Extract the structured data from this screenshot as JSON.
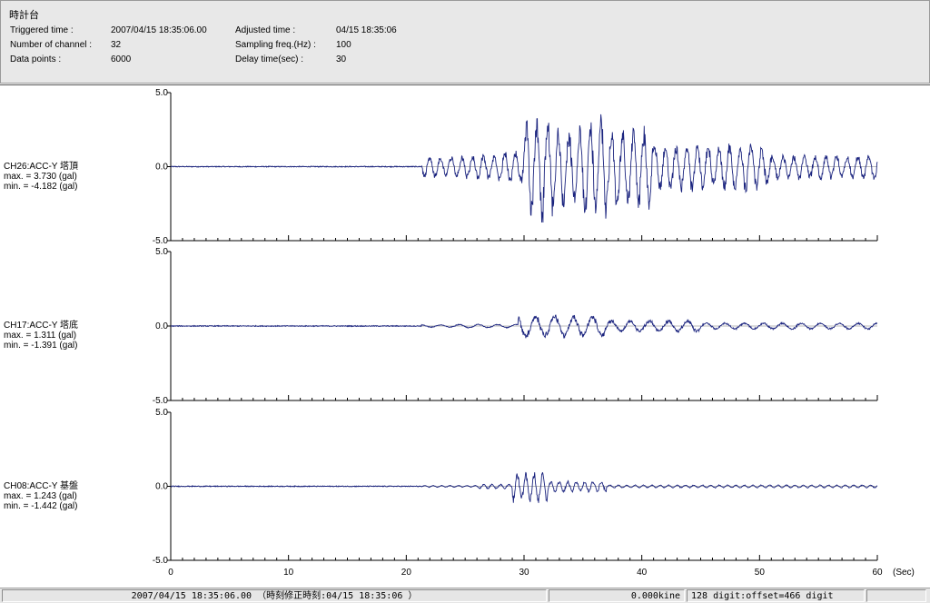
{
  "header": {
    "title": "時計台",
    "triggered_label": "Triggered time :",
    "triggered_value": "2007/04/15 18:35:06.00",
    "channels_label": "Number of channel :",
    "channels_value": "32",
    "points_label": "Data points :",
    "points_value": "6000",
    "adjusted_label": "Adjusted time :",
    "adjusted_value": "04/15 18:35:06",
    "sampling_label": "Sampling freq.(Hz) :",
    "sampling_value": "100",
    "delay_label": "Delay time(sec) :",
    "delay_value": "30"
  },
  "channels": [
    {
      "name": "CH26:ACC-Y 塔頂",
      "max": "max. = 3.730 (gal)",
      "min": "min. = -4.182 (gal)",
      "y_ticks": [
        "5.0",
        "0.0",
        "-5.0"
      ],
      "amp_max": 3.73,
      "amp_min": -4.182
    },
    {
      "name": "CH17:ACC-Y 塔底",
      "max": "max. = 1.311 (gal)",
      "min": "min. = -1.391 (gal)",
      "y_ticks": [
        "5.0",
        "0.0",
        "-5.0"
      ],
      "amp_max": 1.311,
      "amp_min": -1.391
    },
    {
      "name": "CH08:ACC-Y 基盤",
      "max": "max. = 1.243 (gal)",
      "min": "min. = -1.442 (gal)",
      "y_ticks": [
        "5.0",
        "0.0",
        "-5.0"
      ],
      "amp_max": 1.243,
      "amp_min": -1.442
    }
  ],
  "x_axis": {
    "ticks": [
      "0",
      "10",
      "20",
      "30",
      "40",
      "50",
      "60"
    ],
    "unit": "(Sec)",
    "range": [
      0,
      60
    ]
  },
  "status": {
    "time_text": "2007/04/15 18:35:06.00 （時刻修正時刻:04/15 18:35:06 ）",
    "kine_text": "0.000kine",
    "digit_text": "128 digit:offset=466 digit"
  },
  "colors": {
    "trace": "#1a237e",
    "axis": "#000000"
  }
}
